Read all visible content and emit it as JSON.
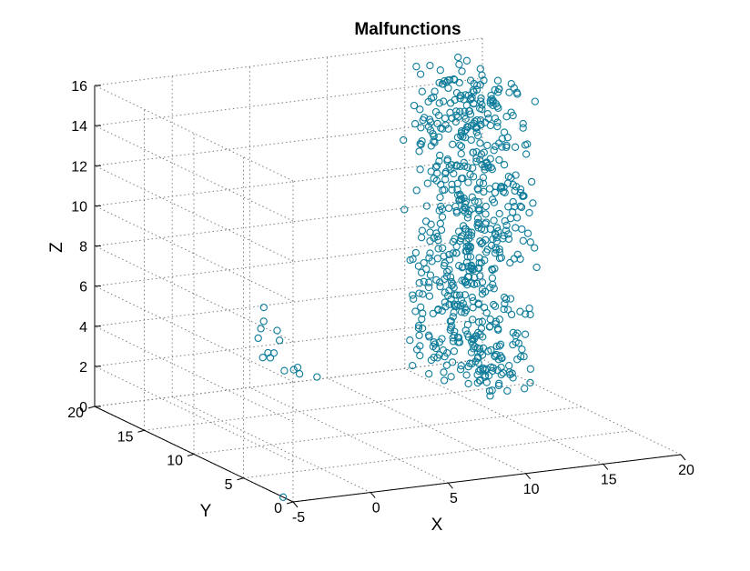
{
  "chart_data": {
    "type": "scatter",
    "title": "Malfunctions",
    "xlabel": "X",
    "ylabel": "Y",
    "zlabel": "Z",
    "xlim": [
      -5,
      20
    ],
    "ylim": [
      0,
      20
    ],
    "zlim": [
      0,
      16
    ],
    "grid": true,
    "marker": "open-circle",
    "marker_color": "#0e7c9a",
    "axis_color": "#000000",
    "grid_color": "#7f7f7f",
    "x_ticks": [
      -5,
      0,
      5,
      10,
      15,
      20
    ],
    "y_ticks": [
      0,
      5,
      10,
      15,
      20
    ],
    "z_ticks": [
      0,
      2,
      4,
      6,
      8,
      10,
      12,
      14,
      16
    ],
    "series": [
      {
        "values_note": "",
        "points": [
          [
            -1.5,
            8.0,
            5.2
          ],
          [
            -1.0,
            9.5,
            6.0
          ],
          [
            -0.5,
            10.0,
            6.2
          ],
          [
            -0.3,
            10.3,
            6.8
          ],
          [
            -0.8,
            8.5,
            5.0
          ],
          [
            -1.2,
            9.0,
            4.7
          ],
          [
            0.2,
            9.5,
            5.3
          ],
          [
            0.5,
            10.2,
            5.6
          ],
          [
            0.8,
            9.0,
            3.9
          ],
          [
            0.6,
            8.3,
            4.2
          ],
          [
            1.3,
            9.2,
            3.6
          ],
          [
            2.3,
            9.0,
            3.4
          ],
          [
            -0.2,
            9.8,
            4.4
          ],
          [
            -1.3,
            9.3,
            5.6
          ],
          [
            0.0,
            8.7,
            4.0
          ],
          [
            -5.0,
            1.0,
            0.0
          ]
        ]
      }
    ],
    "cluster": {
      "x_min": 14,
      "x_max": 18,
      "y_min": 11,
      "y_max": 19,
      "z_min": 0.5,
      "z_max": 15.8,
      "count": 680
    }
  }
}
